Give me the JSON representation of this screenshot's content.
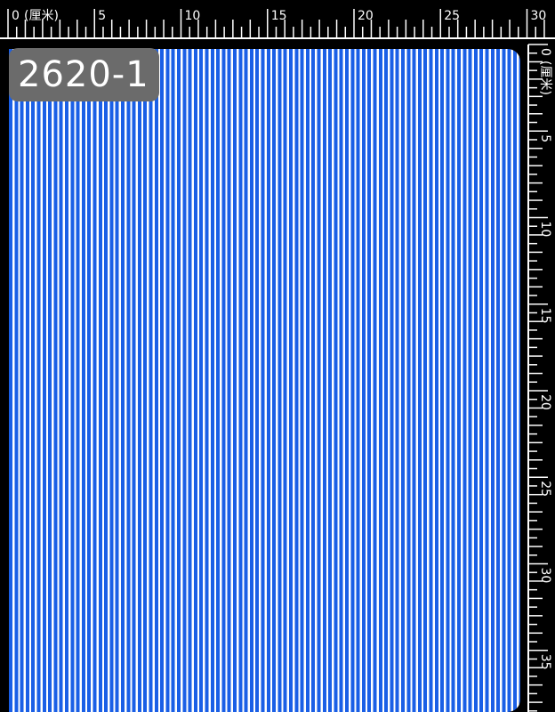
{
  "swatch": {
    "code": "2620-1",
    "stripe_colors": [
      "#1a5fe6",
      "#ffffff"
    ]
  },
  "ruler": {
    "unit": "(厘米)",
    "top_labels": [
      "0",
      "5",
      "10",
      "15",
      "20",
      "25",
      "30"
    ],
    "side_labels": [
      "0",
      "5",
      "10",
      "15",
      "20",
      "25",
      "30",
      "35"
    ]
  }
}
